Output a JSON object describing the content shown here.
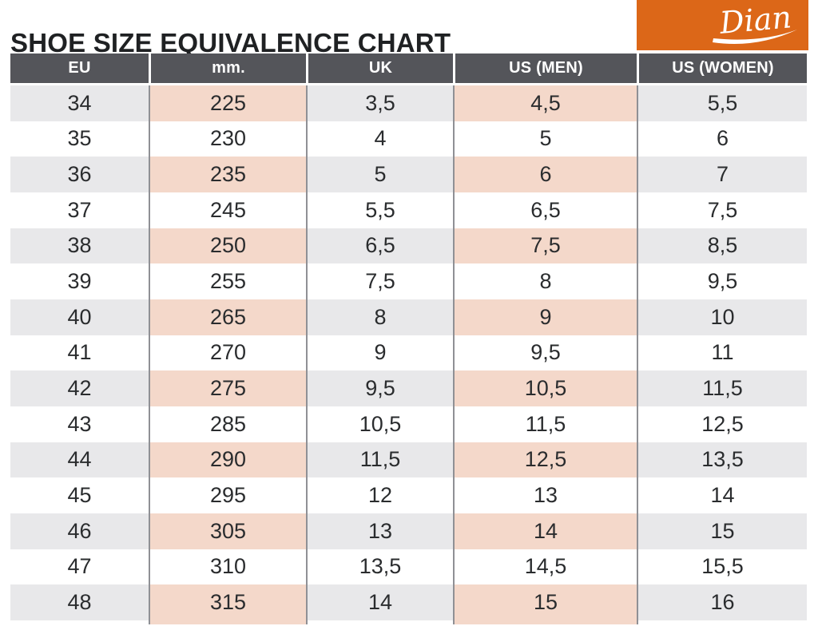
{
  "page": {
    "title": "SHOE SIZE EQUIVALENCE CHART",
    "brand": "Dian"
  },
  "colors": {
    "accent_orange": "#DC6718",
    "header_gray": "#54555A",
    "stripe_gray": "#E8E8EA",
    "stripe_pink": "#F4D8CA",
    "divider_gray": "#8F9095"
  },
  "chart_data": {
    "type": "table",
    "title": "SHOE SIZE EQUIVALENCE CHART",
    "columns": [
      "EU",
      "mm.",
      "UK",
      "US (MEN)",
      "US (WOMEN)"
    ],
    "rows": [
      [
        "34",
        "225",
        "3,5",
        "4,5",
        "5,5"
      ],
      [
        "35",
        "230",
        "4",
        "5",
        "6"
      ],
      [
        "36",
        "235",
        "5",
        "6",
        "7"
      ],
      [
        "37",
        "245",
        "5,5",
        "6,5",
        "7,5"
      ],
      [
        "38",
        "250",
        "6,5",
        "7,5",
        "8,5"
      ],
      [
        "39",
        "255",
        "7,5",
        "8",
        "9,5"
      ],
      [
        "40",
        "265",
        "8",
        "9",
        "10"
      ],
      [
        "41",
        "270",
        "9",
        "9,5",
        "11"
      ],
      [
        "42",
        "275",
        "9,5",
        "10,5",
        "11,5"
      ],
      [
        "43",
        "285",
        "10,5",
        "11,5",
        "12,5"
      ],
      [
        "44",
        "290",
        "11,5",
        "12,5",
        "13,5"
      ],
      [
        "45",
        "295",
        "12",
        "13",
        "14"
      ],
      [
        "46",
        "305",
        "13",
        "14",
        "15"
      ],
      [
        "47",
        "310",
        "13,5",
        "14,5",
        "15,5"
      ],
      [
        "48",
        "315",
        "14",
        "15",
        "16"
      ]
    ]
  }
}
